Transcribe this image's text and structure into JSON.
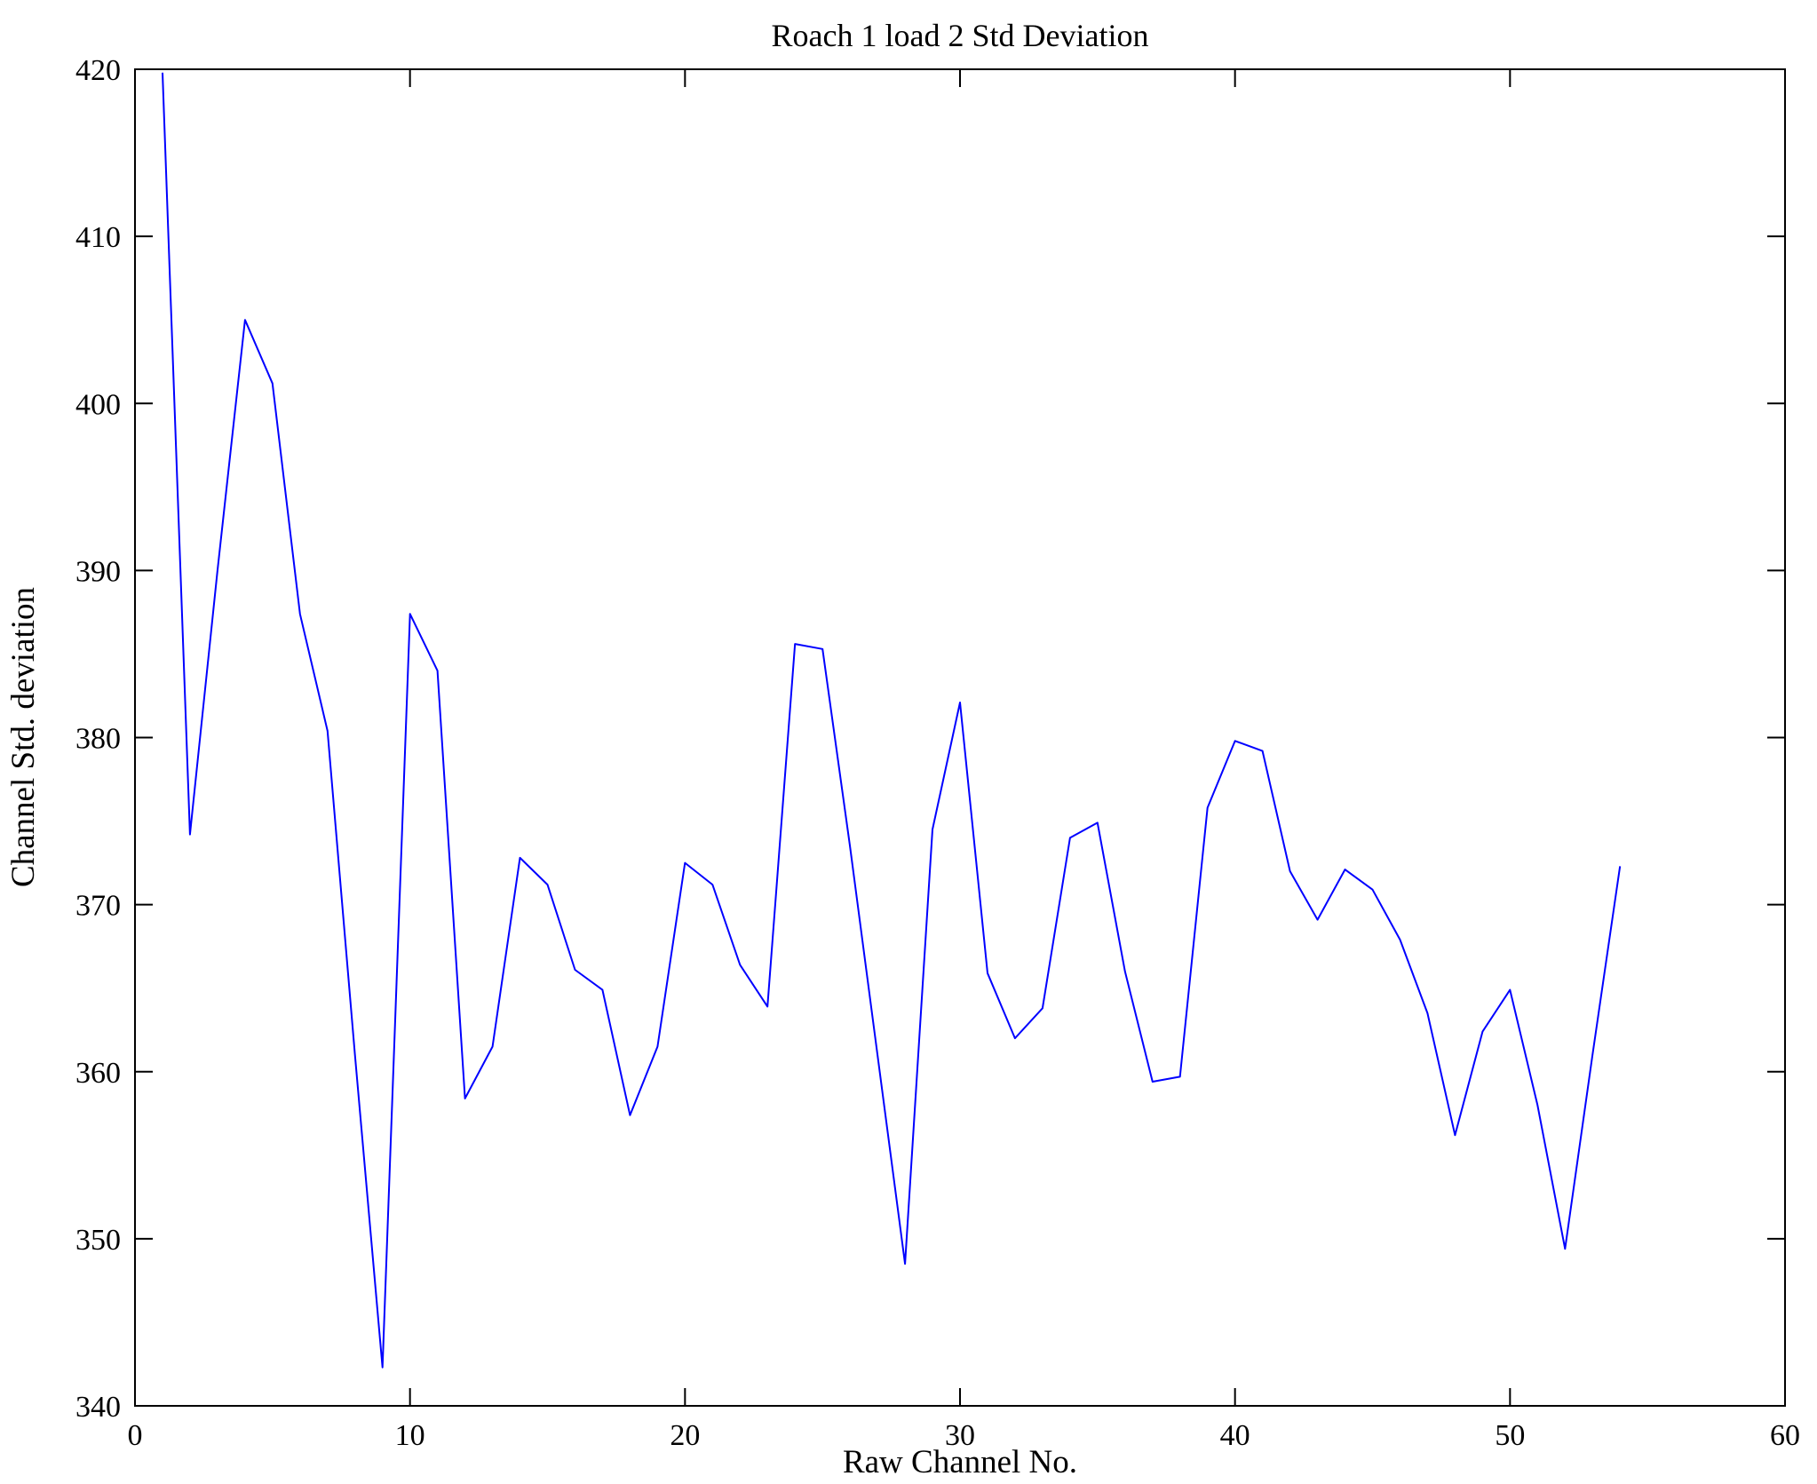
{
  "chart_data": {
    "type": "line",
    "title": "Roach 1 load 2 Std Deviation",
    "xlabel": "Raw Channel No.",
    "ylabel": "Channel Std. deviation",
    "xlim": [
      0,
      60
    ],
    "ylim": [
      340,
      420
    ],
    "xticks": [
      0,
      10,
      20,
      30,
      40,
      50,
      60
    ],
    "yticks": [
      340,
      350,
      360,
      370,
      380,
      390,
      400,
      410,
      420
    ],
    "grid": false,
    "legend": null,
    "line_color": "#0000ff",
    "frame_color": "#000000",
    "x": [
      1,
      2,
      3,
      4,
      5,
      6,
      7,
      8,
      9,
      10,
      11,
      12,
      13,
      14,
      15,
      16,
      17,
      18,
      19,
      20,
      21,
      22,
      23,
      24,
      25,
      26,
      27,
      28,
      29,
      30,
      31,
      32,
      33,
      34,
      35,
      36,
      37,
      38,
      39,
      40,
      41,
      42,
      43,
      44,
      45,
      46,
      47,
      48,
      49,
      50,
      51,
      52,
      53,
      54
    ],
    "y": [
      419.8,
      374.2,
      390.0,
      405.0,
      401.2,
      387.4,
      380.4,
      361.0,
      342.3,
      387.4,
      384.0,
      358.4,
      361.5,
      372.8,
      371.2,
      366.1,
      364.9,
      357.4,
      361.5,
      372.5,
      371.2,
      366.4,
      363.9,
      385.6,
      385.3,
      373.5,
      361.0,
      348.5,
      374.5,
      382.1,
      365.9,
      362.0,
      363.8,
      374.0,
      374.9,
      366.0,
      359.4,
      359.7,
      375.8,
      379.8,
      379.2,
      372.0,
      369.1,
      372.1,
      370.9,
      367.9,
      363.5,
      356.2,
      362.4,
      364.9,
      358.0,
      349.4,
      361.0,
      372.3
    ]
  }
}
